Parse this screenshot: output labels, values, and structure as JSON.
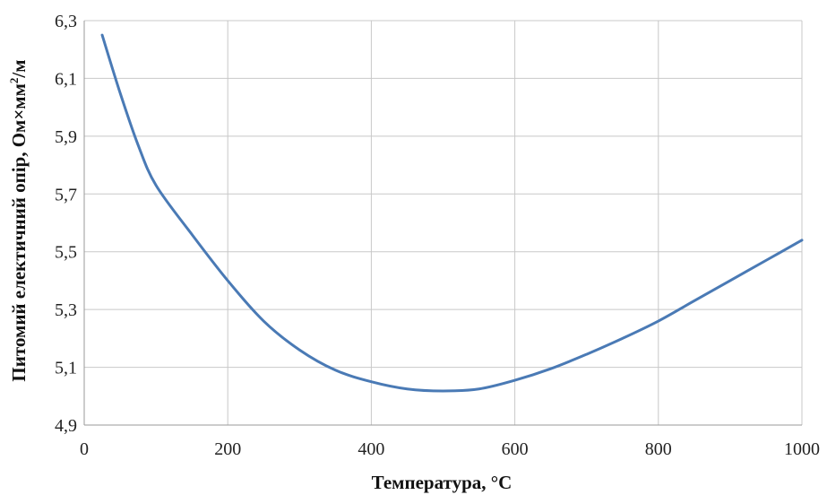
{
  "chart_data": {
    "type": "line",
    "title": "",
    "xlabel": "Температура, °С",
    "ylabel_main": "Питомий електичний опір, Ом×мм",
    "ylabel_sup": "2",
    "ylabel_tail": "/м",
    "xlim": [
      0,
      1000
    ],
    "ylim": [
      4.9,
      6.3
    ],
    "x_ticks": [
      0,
      200,
      400,
      600,
      800,
      1000
    ],
    "x_tick_labels": [
      "0",
      "200",
      "400",
      "600",
      "800",
      "1000"
    ],
    "y_ticks": [
      4.9,
      5.1,
      5.3,
      5.5,
      5.7,
      5.9,
      6.1,
      6.3
    ],
    "y_tick_labels": [
      "4,9",
      "5,1",
      "5,3",
      "5,5",
      "5,7",
      "5,9",
      "6,1",
      "6,3"
    ],
    "grid": true,
    "legend": "none",
    "series": [
      {
        "color": "#4a7ab5",
        "x": [
          25,
          50,
          75,
          100,
          150,
          200,
          250,
          300,
          350,
          400,
          450,
          500,
          550,
          600,
          650,
          700,
          750,
          800,
          850,
          900,
          950,
          1000
        ],
        "y": [
          6.25,
          6.05,
          5.87,
          5.73,
          5.56,
          5.4,
          5.26,
          5.16,
          5.09,
          5.05,
          5.025,
          5.018,
          5.025,
          5.055,
          5.095,
          5.145,
          5.2,
          5.26,
          5.33,
          5.4,
          5.47,
          5.54
        ]
      }
    ]
  }
}
